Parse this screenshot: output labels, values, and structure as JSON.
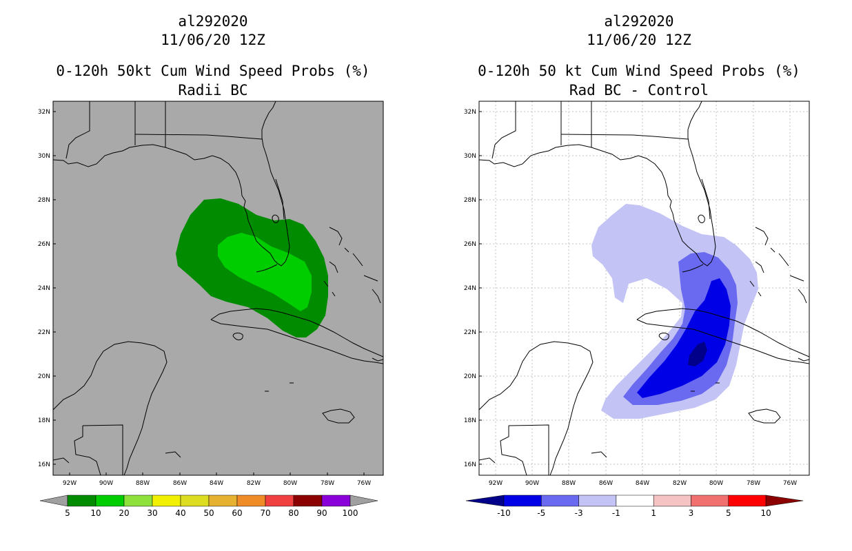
{
  "left": {
    "storm_id": "al292020",
    "datetime": "11/06/20 12Z",
    "product": "0-120h 50kt Cum Wind Speed Probs (%)",
    "subtitle": "Radii BC",
    "lat_labels": [
      "32N",
      "30N",
      "28N",
      "26N",
      "24N",
      "22N",
      "20N",
      "18N",
      "16N"
    ],
    "lon_labels": [
      "92W",
      "90W",
      "88W",
      "86W",
      "84W",
      "82W",
      "80W",
      "78W",
      "76W"
    ],
    "colorbar": {
      "labels": [
        "5",
        "10",
        "20",
        "30",
        "40",
        "50",
        "60",
        "70",
        "80",
        "90",
        "100"
      ],
      "colors": [
        "#008b00",
        "#00cd00",
        "#8ee03a",
        "#f0f000",
        "#dcdc20",
        "#e6b030",
        "#f08c28",
        "#f04040",
        "#8b0000",
        "#8a00d8"
      ],
      "end_color": "#a0a0a0"
    },
    "map_background": "#a9a9a9"
  },
  "right": {
    "storm_id": "al292020",
    "datetime": "11/06/20 12Z",
    "product": "0-120h 50 kt Cum Wind Speed Probs (%)",
    "subtitle": "Rad BC - Control",
    "lat_labels": [
      "32N",
      "30N",
      "28N",
      "26N",
      "24N",
      "22N",
      "20N",
      "18N",
      "16N"
    ],
    "lon_labels": [
      "92W",
      "90W",
      "88W",
      "86W",
      "84W",
      "82W",
      "80W",
      "78W",
      "76W"
    ],
    "colorbar": {
      "labels": [
        "-10",
        "-5",
        "-3",
        "-1",
        "1",
        "3",
        "5",
        "10"
      ],
      "colors": [
        "#0000e6",
        "#6a6af0",
        "#c3c3f5",
        "#ffffff",
        "#f5c3c3",
        "#f07070",
        "#ff0000"
      ],
      "low_end_color": "#00008b",
      "high_end_color": "#8b0000"
    },
    "map_background": "#ffffff",
    "grid_color": "#c0c0c0"
  }
}
